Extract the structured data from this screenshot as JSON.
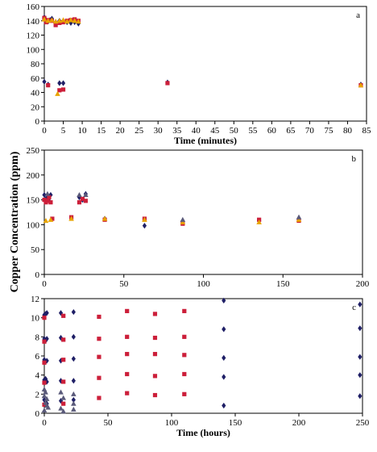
{
  "shared_ylabel": "Copper Concentration (ppm)",
  "colors": {
    "series_a": "#1f1f66",
    "series_b": "#cc1f3a",
    "series_c": "#e8a400",
    "series_d": "#5a5a7a",
    "axis": "#000000"
  },
  "chart_data": [
    {
      "id": "a",
      "type": "scatter",
      "panel_label": "a",
      "xlabel": "Time (minutes)",
      "xlim": [
        0,
        85
      ],
      "ylim": [
        0,
        160
      ],
      "xticks": [
        0,
        5,
        10,
        15,
        20,
        25,
        30,
        35,
        40,
        45,
        50,
        55,
        60,
        65,
        70,
        75,
        80,
        85
      ],
      "yticks": [
        0,
        20,
        40,
        60,
        80,
        100,
        120,
        140,
        160
      ],
      "series": [
        {
          "marker": "diamond",
          "color": "#1f1f66",
          "x": [
            0,
            0.5,
            1,
            1.5,
            2,
            3,
            4,
            5,
            6,
            7,
            8,
            9,
            0,
            1,
            4,
            5,
            32.5,
            83.5
          ],
          "y": [
            145,
            141,
            139,
            141,
            143,
            138,
            140,
            139,
            138,
            137,
            138,
            136,
            55,
            51,
            53,
            53,
            54,
            51
          ]
        },
        {
          "marker": "square",
          "color": "#cc1f3a",
          "x": [
            0,
            0.5,
            1,
            2,
            3,
            4,
            5,
            6,
            7,
            8,
            9,
            1,
            4,
            5,
            32.5,
            83.5
          ],
          "y": [
            144,
            138,
            141,
            140,
            134,
            137,
            138,
            140,
            141,
            142,
            140,
            50,
            43,
            44,
            53,
            50
          ]
        },
        {
          "marker": "triangle",
          "color": "#e8a400",
          "x": [
            0,
            1,
            2,
            3,
            4,
            5,
            6,
            7,
            8,
            9,
            3.5,
            83.5
          ],
          "y": [
            142,
            140,
            141,
            139,
            140,
            141,
            139,
            141,
            140,
            139,
            38,
            50
          ]
        }
      ]
    },
    {
      "id": "b",
      "type": "scatter",
      "panel_label": "b",
      "xlabel": "",
      "xlim": [
        0,
        200
      ],
      "ylim": [
        0,
        250
      ],
      "xticks": [
        0,
        50,
        100,
        150,
        200
      ],
      "yticks": [
        0,
        50,
        100,
        150,
        200,
        250
      ],
      "series": [
        {
          "marker": "diamond",
          "color": "#1f1f66",
          "x": [
            0,
            1,
            2,
            3,
            4,
            22,
            24,
            26,
            38,
            63,
            87,
            135,
            160
          ],
          "y": [
            160,
            152,
            155,
            148,
            160,
            155,
            150,
            162,
            112,
            98,
            108,
            108,
            113
          ]
        },
        {
          "marker": "square",
          "color": "#cc1f3a",
          "x": [
            0,
            1,
            2,
            3,
            4,
            5,
            17,
            22,
            24,
            26,
            38,
            63,
            87,
            135,
            160
          ],
          "y": [
            150,
            145,
            148,
            155,
            145,
            112,
            115,
            145,
            152,
            148,
            110,
            112,
            102,
            110,
            108
          ]
        },
        {
          "marker": "triangle",
          "color": "#e8a400",
          "x": [
            1,
            4,
            17,
            38,
            63,
            87,
            135,
            160
          ],
          "y": [
            108,
            110,
            112,
            112,
            110,
            105,
            105,
            110
          ]
        },
        {
          "marker": "triangle",
          "color": "#5a5a7a",
          "x": [
            2,
            22,
            26,
            87,
            160
          ],
          "y": [
            162,
            160,
            160,
            110,
            115
          ]
        }
      ]
    },
    {
      "id": "c",
      "type": "scatter",
      "panel_label": "c",
      "xlabel": "Time (hours)",
      "xlim": [
        0,
        250
      ],
      "ylim": [
        0,
        12
      ],
      "xticks": [
        0,
        50,
        100,
        150,
        200,
        250
      ],
      "yticks": [
        0,
        2,
        4,
        6,
        8,
        10,
        12
      ],
      "series": [
        {
          "marker": "diamond",
          "color": "#1f1f66",
          "x": [
            0,
            0,
            0,
            0,
            0,
            1,
            1,
            1,
            1,
            1,
            2,
            2,
            2,
            2,
            2,
            13,
            13,
            13,
            13,
            13,
            23,
            23,
            23,
            23,
            23,
            141,
            141,
            141,
            141,
            141,
            248,
            248,
            248,
            248,
            248
          ],
          "y": [
            10.3,
            7.8,
            5.6,
            3.5,
            1.4,
            10.4,
            7.6,
            5.4,
            3.6,
            1.2,
            10.5,
            7.8,
            5.5,
            3.3,
            1.0,
            10.5,
            7.9,
            5.5,
            3.4,
            1.3,
            10.6,
            8.0,
            5.7,
            3.4,
            1.4,
            11.8,
            8.8,
            5.8,
            3.8,
            0.8,
            11.4,
            8.9,
            5.9,
            4.0,
            1.8
          ]
        },
        {
          "marker": "square",
          "color": "#cc1f3a",
          "x": [
            0,
            0,
            0,
            0,
            0,
            15,
            15,
            15,
            15,
            15,
            43,
            43,
            43,
            43,
            43,
            65,
            65,
            65,
            65,
            65,
            87,
            87,
            87,
            87,
            87,
            110,
            110,
            110,
            110,
            110
          ],
          "y": [
            10.0,
            7.5,
            5.3,
            3.2,
            0.9,
            10.2,
            7.7,
            5.6,
            3.3,
            1.0,
            10.1,
            7.8,
            5.9,
            3.7,
            1.6,
            10.7,
            8.0,
            6.2,
            4.1,
            2.1,
            10.4,
            7.9,
            6.2,
            3.9,
            1.9,
            10.7,
            8.0,
            6.1,
            4.1,
            2.0
          ]
        },
        {
          "marker": "triangle",
          "color": "#5a5a7a",
          "x": [
            0,
            1,
            2,
            3,
            13,
            15,
            23,
            23,
            0,
            2,
            13,
            23,
            0,
            1,
            15
          ],
          "y": [
            2.5,
            2.2,
            1.5,
            0.6,
            2.2,
            1.6,
            2.0,
            1.0,
            0.3,
            0.8,
            0.5,
            0.4,
            1.8,
            1.1,
            0.2
          ]
        }
      ]
    }
  ]
}
